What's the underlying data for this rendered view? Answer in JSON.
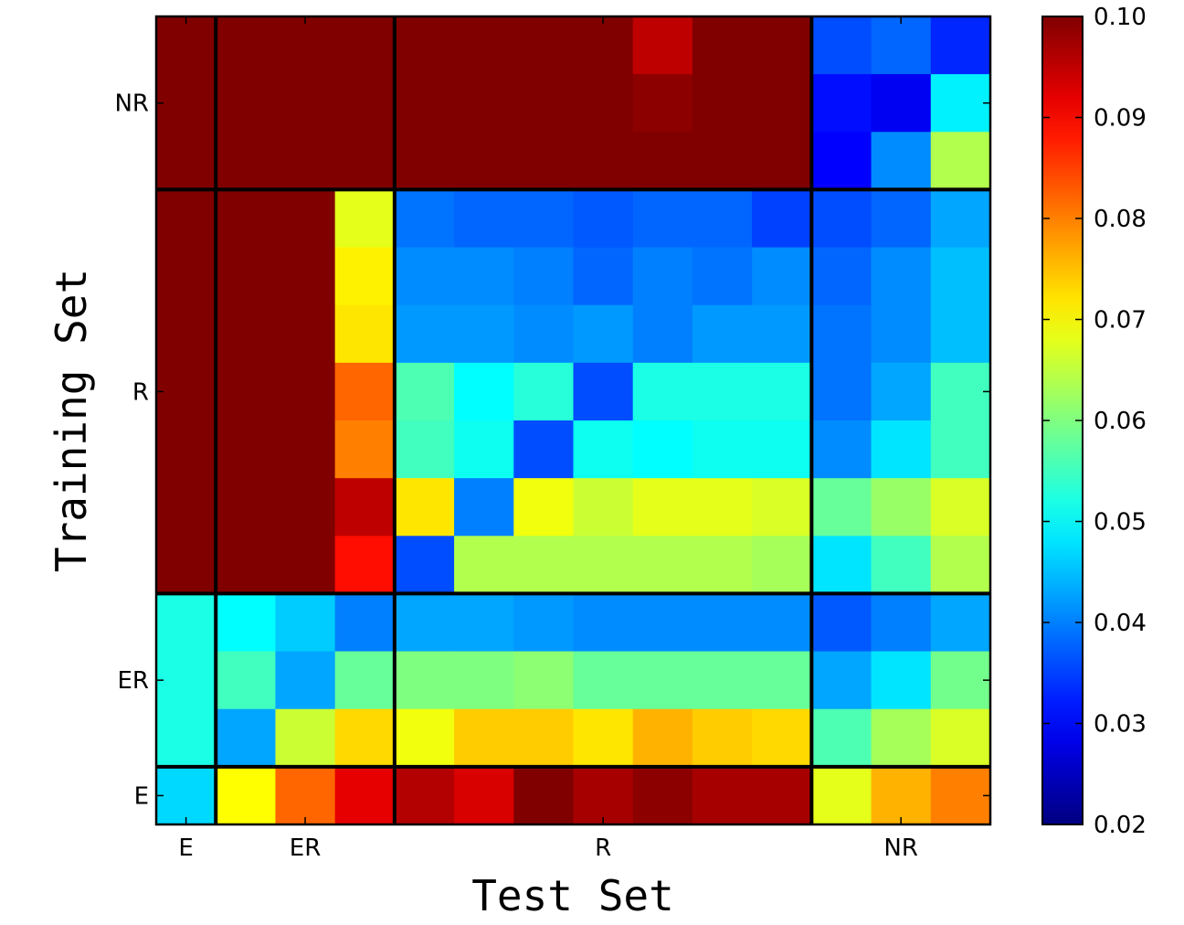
{
  "chart_data": {
    "type": "heatmap",
    "xlabel": "Test Set",
    "ylabel": "Training Set",
    "x_groups": [
      {
        "label": "E",
        "span": 1
      },
      {
        "label": "ER",
        "span": 3
      },
      {
        "label": "R",
        "span": 7
      },
      {
        "label": "NR",
        "span": 3
      }
    ],
    "y_groups_top_to_bottom": [
      {
        "label": "NR",
        "span": 3
      },
      {
        "label": "R",
        "span": 7
      },
      {
        "label": "ER",
        "span": 3
      },
      {
        "label": "E",
        "span": 1
      }
    ],
    "colormap": "jet",
    "clim": [
      0.02,
      0.1
    ],
    "colorbar_ticks": [
      "0.02",
      "0.03",
      "0.04",
      "0.05",
      "0.06",
      "0.07",
      "0.08",
      "0.09",
      "0.10"
    ],
    "values_top_to_bottom": [
      [
        0.1,
        0.1,
        0.1,
        0.1,
        0.1,
        0.1,
        0.1,
        0.1,
        0.095,
        0.1,
        0.1,
        0.036,
        0.038,
        0.033
      ],
      [
        0.1,
        0.1,
        0.1,
        0.1,
        0.1,
        0.1,
        0.1,
        0.1,
        0.099,
        0.1,
        0.1,
        0.031,
        0.029,
        0.049
      ],
      [
        0.1,
        0.1,
        0.1,
        0.1,
        0.1,
        0.1,
        0.1,
        0.1,
        0.1,
        0.1,
        0.1,
        0.03,
        0.041,
        0.064
      ],
      [
        0.1,
        0.1,
        0.1,
        0.068,
        0.039,
        0.038,
        0.038,
        0.037,
        0.038,
        0.038,
        0.035,
        0.036,
        0.038,
        0.043
      ],
      [
        0.1,
        0.1,
        0.1,
        0.071,
        0.041,
        0.041,
        0.04,
        0.038,
        0.04,
        0.039,
        0.041,
        0.038,
        0.041,
        0.045
      ],
      [
        0.1,
        0.1,
        0.1,
        0.072,
        0.042,
        0.042,
        0.041,
        0.042,
        0.04,
        0.042,
        0.042,
        0.039,
        0.041,
        0.045
      ],
      [
        0.1,
        0.1,
        0.1,
        0.082,
        0.056,
        0.05,
        0.053,
        0.036,
        0.052,
        0.052,
        0.052,
        0.039,
        0.043,
        0.055
      ],
      [
        0.1,
        0.1,
        0.1,
        0.08,
        0.055,
        0.051,
        0.036,
        0.051,
        0.05,
        0.051,
        0.051,
        0.041,
        0.048,
        0.055
      ],
      [
        0.1,
        0.1,
        0.1,
        0.095,
        0.072,
        0.04,
        0.069,
        0.066,
        0.068,
        0.068,
        0.067,
        0.058,
        0.062,
        0.067
      ],
      [
        0.1,
        0.1,
        0.1,
        0.089,
        0.036,
        0.064,
        0.064,
        0.064,
        0.064,
        0.064,
        0.063,
        0.048,
        0.055,
        0.064
      ],
      [
        0.052,
        0.05,
        0.046,
        0.04,
        0.043,
        0.043,
        0.042,
        0.041,
        0.041,
        0.041,
        0.041,
        0.037,
        0.04,
        0.043
      ],
      [
        0.052,
        0.055,
        0.043,
        0.058,
        0.06,
        0.06,
        0.061,
        0.058,
        0.058,
        0.058,
        0.058,
        0.043,
        0.048,
        0.059
      ],
      [
        0.052,
        0.043,
        0.066,
        0.073,
        0.069,
        0.074,
        0.074,
        0.072,
        0.076,
        0.074,
        0.073,
        0.056,
        0.063,
        0.067
      ],
      [
        0.047,
        0.07,
        0.082,
        0.092,
        0.096,
        0.093,
        0.1,
        0.097,
        0.099,
        0.097,
        0.097,
        0.068,
        0.076,
        0.08
      ]
    ]
  }
}
